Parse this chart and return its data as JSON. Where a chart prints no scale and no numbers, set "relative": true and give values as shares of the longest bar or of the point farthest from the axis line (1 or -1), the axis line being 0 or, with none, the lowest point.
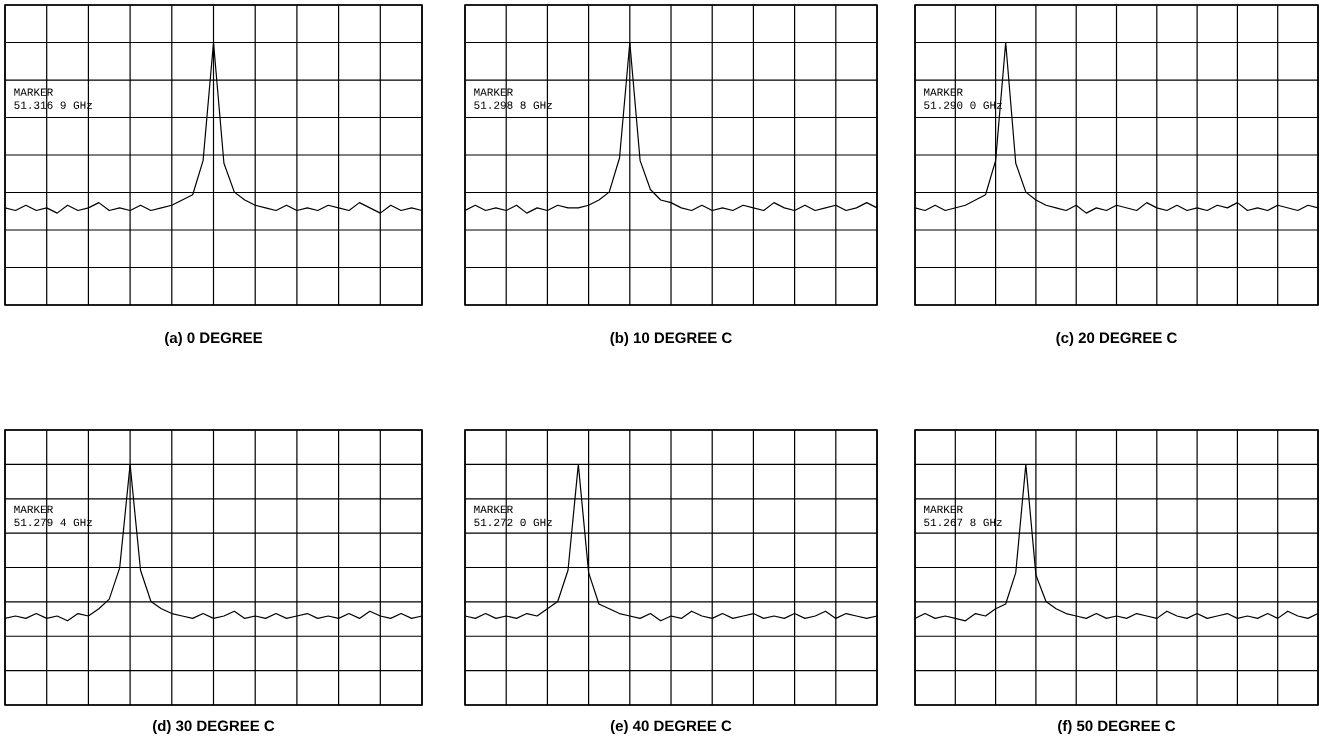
{
  "chart_data": [
    {
      "type": "line",
      "relative": true,
      "title": "(a) 0 DEGREE",
      "annotations": [
        "MARKER",
        "51.316 9 GHz"
      ],
      "grid": true,
      "tick_labels": false,
      "color": "#000000",
      "categories": [
        null,
        null,
        null,
        null,
        null,
        null,
        null,
        null,
        null,
        null,
        null,
        null,
        null,
        null,
        null,
        null,
        null,
        null,
        null,
        null,
        null,
        null,
        null,
        null,
        null,
        null,
        null,
        null,
        null,
        null,
        null,
        null,
        null,
        null,
        null,
        null,
        null,
        null,
        null,
        null,
        null
      ],
      "values": [
        0.37,
        0.36,
        0.38,
        0.36,
        0.37,
        0.35,
        0.38,
        0.36,
        0.37,
        0.39,
        0.36,
        0.37,
        0.36,
        0.38,
        0.36,
        0.37,
        0.38,
        0.4,
        0.42,
        0.55,
        1,
        0.54,
        0.43,
        0.4,
        0.38,
        0.37,
        0.36,
        0.38,
        0.36,
        0.37,
        0.36,
        0.38,
        0.37,
        0.36,
        0.39,
        0.37,
        0.35,
        0.38,
        0.36,
        0.37,
        0.36
      ]
    },
    {
      "type": "line",
      "relative": true,
      "title": "(b) 10 DEGREE C",
      "annotations": [
        "MARKER",
        "51.298 8 GHz"
      ],
      "grid": true,
      "tick_labels": false,
      "color": "#000000",
      "categories": [
        null,
        null,
        null,
        null,
        null,
        null,
        null,
        null,
        null,
        null,
        null,
        null,
        null,
        null,
        null,
        null,
        null,
        null,
        null,
        null,
        null,
        null,
        null,
        null,
        null,
        null,
        null,
        null,
        null,
        null,
        null,
        null,
        null,
        null,
        null,
        null,
        null,
        null,
        null,
        null,
        null
      ],
      "values": [
        0.36,
        0.38,
        0.36,
        0.37,
        0.36,
        0.38,
        0.35,
        0.37,
        0.36,
        0.38,
        0.37,
        0.37,
        0.38,
        0.4,
        0.43,
        0.56,
        1,
        0.55,
        0.44,
        0.4,
        0.39,
        0.37,
        0.36,
        0.38,
        0.36,
        0.37,
        0.36,
        0.38,
        0.37,
        0.36,
        0.39,
        0.37,
        0.36,
        0.38,
        0.36,
        0.37,
        0.38,
        0.36,
        0.37,
        0.39,
        0.37
      ]
    },
    {
      "type": "line",
      "relative": true,
      "title": "(c) 20 DEGREE C",
      "annotations": [
        "MARKER",
        "51.290 0 GHz"
      ],
      "grid": true,
      "tick_labels": false,
      "color": "#000000",
      "categories": [
        null,
        null,
        null,
        null,
        null,
        null,
        null,
        null,
        null,
        null,
        null,
        null,
        null,
        null,
        null,
        null,
        null,
        null,
        null,
        null,
        null,
        null,
        null,
        null,
        null,
        null,
        null,
        null,
        null,
        null,
        null,
        null,
        null,
        null,
        null,
        null,
        null,
        null,
        null,
        null,
        null
      ],
      "values": [
        0.37,
        0.36,
        0.38,
        0.36,
        0.37,
        0.38,
        0.4,
        0.42,
        0.55,
        1,
        0.54,
        0.43,
        0.4,
        0.38,
        0.37,
        0.36,
        0.38,
        0.35,
        0.37,
        0.36,
        0.38,
        0.37,
        0.36,
        0.39,
        0.37,
        0.36,
        0.38,
        0.36,
        0.37,
        0.36,
        0.38,
        0.37,
        0.39,
        0.36,
        0.37,
        0.36,
        0.38,
        0.37,
        0.36,
        0.38,
        0.37
      ]
    },
    {
      "type": "line",
      "relative": true,
      "title": "(d) 30 DEGREE C",
      "annotations": [
        "MARKER",
        "51.279 4 GHz"
      ],
      "grid": true,
      "tick_labels": false,
      "color": "#000000",
      "categories": [
        null,
        null,
        null,
        null,
        null,
        null,
        null,
        null,
        null,
        null,
        null,
        null,
        null,
        null,
        null,
        null,
        null,
        null,
        null,
        null,
        null,
        null,
        null,
        null,
        null,
        null,
        null,
        null,
        null,
        null,
        null,
        null,
        null,
        null,
        null,
        null,
        null,
        null,
        null,
        null,
        null
      ],
      "values": [
        0.36,
        0.37,
        0.36,
        0.38,
        0.36,
        0.37,
        0.35,
        0.38,
        0.37,
        0.4,
        0.44,
        0.57,
        1,
        0.56,
        0.43,
        0.4,
        0.38,
        0.37,
        0.36,
        0.38,
        0.36,
        0.37,
        0.39,
        0.36,
        0.37,
        0.36,
        0.38,
        0.36,
        0.37,
        0.38,
        0.36,
        0.37,
        0.36,
        0.38,
        0.36,
        0.39,
        0.37,
        0.36,
        0.38,
        0.36,
        0.37
      ]
    },
    {
      "type": "line",
      "relative": true,
      "title": "(e) 40 DEGREE C",
      "annotations": [
        "MARKER",
        "51.272 0 GHz"
      ],
      "grid": true,
      "tick_labels": false,
      "color": "#000000",
      "categories": [
        null,
        null,
        null,
        null,
        null,
        null,
        null,
        null,
        null,
        null,
        null,
        null,
        null,
        null,
        null,
        null,
        null,
        null,
        null,
        null,
        null,
        null,
        null,
        null,
        null,
        null,
        null,
        null,
        null,
        null,
        null,
        null,
        null,
        null,
        null,
        null,
        null,
        null,
        null,
        null,
        null
      ],
      "values": [
        0.37,
        0.36,
        0.38,
        0.36,
        0.37,
        0.36,
        0.38,
        0.37,
        0.4,
        0.43,
        0.56,
        1,
        0.55,
        0.42,
        0.4,
        0.38,
        0.37,
        0.36,
        0.38,
        0.35,
        0.37,
        0.36,
        0.39,
        0.37,
        0.36,
        0.38,
        0.36,
        0.37,
        0.38,
        0.36,
        0.37,
        0.36,
        0.38,
        0.36,
        0.37,
        0.39,
        0.36,
        0.38,
        0.37,
        0.36,
        0.37
      ]
    },
    {
      "type": "line",
      "relative": true,
      "title": "(f) 50 DEGREE C",
      "annotations": [
        "MARKER",
        "51.267 8 GHz"
      ],
      "grid": true,
      "tick_labels": false,
      "color": "#000000",
      "categories": [
        null,
        null,
        null,
        null,
        null,
        null,
        null,
        null,
        null,
        null,
        null,
        null,
        null,
        null,
        null,
        null,
        null,
        null,
        null,
        null,
        null,
        null,
        null,
        null,
        null,
        null,
        null,
        null,
        null,
        null,
        null,
        null,
        null,
        null,
        null,
        null,
        null,
        null,
        null,
        null,
        null
      ],
      "values": [
        0.36,
        0.38,
        0.36,
        0.37,
        0.36,
        0.35,
        0.38,
        0.37,
        0.4,
        0.42,
        0.55,
        1,
        0.54,
        0.43,
        0.4,
        0.38,
        0.37,
        0.36,
        0.38,
        0.36,
        0.37,
        0.36,
        0.38,
        0.37,
        0.36,
        0.39,
        0.37,
        0.36,
        0.38,
        0.36,
        0.37,
        0.38,
        0.36,
        0.37,
        0.36,
        0.38,
        0.36,
        0.39,
        0.37,
        0.36,
        0.38
      ]
    }
  ]
}
